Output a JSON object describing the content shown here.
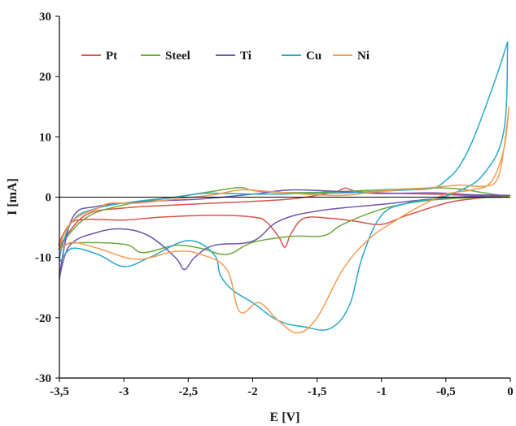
{
  "chart_data": {
    "type": "line",
    "xlabel": "E [V]",
    "ylabel": "I [mA]",
    "xlim": [
      -3.5,
      0
    ],
    "ylim": [
      -30,
      30
    ],
    "x_ticks": [
      -3.5,
      -3,
      -2.5,
      -2,
      -1.5,
      -1,
      -0.5,
      0
    ],
    "x_tick_labels": [
      "-3,5",
      "-3",
      "-2,5",
      "-2",
      "-1,5",
      "-1",
      "-0,5",
      "0"
    ],
    "y_ticks": [
      -30,
      -20,
      -10,
      0,
      10,
      20,
      30
    ],
    "y_tick_labels": [
      "-30",
      "-20",
      "-10",
      "0",
      "10",
      "20",
      "30"
    ],
    "grid": false,
    "legend_position": "top-left",
    "series": [
      {
        "name": "Pt",
        "color": "#d9534a",
        "points": [
          [
            0,
            0.3
          ],
          [
            -0.3,
            0.3
          ],
          [
            -0.6,
            0.5
          ],
          [
            -1.0,
            0.7
          ],
          [
            -1.2,
            1.0
          ],
          [
            -1.28,
            1.5
          ],
          [
            -1.35,
            0.9
          ],
          [
            -1.5,
            0.3
          ],
          [
            -1.7,
            -0.3
          ],
          [
            -2.0,
            -0.7
          ],
          [
            -2.3,
            -1.0
          ],
          [
            -2.6,
            -1.3
          ],
          [
            -3.0,
            -1.8
          ],
          [
            -3.3,
            -3.0
          ],
          [
            -3.5,
            -8.0
          ],
          [
            -3.42,
            -4.5
          ],
          [
            -3.3,
            -3.7
          ],
          [
            -3.0,
            -3.8
          ],
          [
            -2.7,
            -3.3
          ],
          [
            -2.3,
            -3.0
          ],
          [
            -2.0,
            -3.3
          ],
          [
            -1.9,
            -4.0
          ],
          [
            -1.8,
            -6.5
          ],
          [
            -1.75,
            -8.3
          ],
          [
            -1.7,
            -6.0
          ],
          [
            -1.6,
            -3.5
          ],
          [
            -1.4,
            -3.5
          ],
          [
            -1.2,
            -4.0
          ],
          [
            -1.0,
            -4.5
          ],
          [
            -0.8,
            -3.0
          ],
          [
            -0.5,
            -1.0
          ],
          [
            -0.3,
            -0.3
          ],
          [
            0,
            0.3
          ]
        ]
      },
      {
        "name": "Steel",
        "color": "#6aaa3c",
        "points": [
          [
            0,
            0
          ],
          [
            -0.2,
            0.7
          ],
          [
            -0.5,
            1.5
          ],
          [
            -1.0,
            1.2
          ],
          [
            -1.5,
            0.8
          ],
          [
            -1.8,
            0.8
          ],
          [
            -2.0,
            1.1
          ],
          [
            -2.1,
            1.6
          ],
          [
            -2.3,
            1.0
          ],
          [
            -2.6,
            0.0
          ],
          [
            -3.0,
            -1.3
          ],
          [
            -3.3,
            -3.5
          ],
          [
            -3.5,
            -8.5
          ],
          [
            -3.4,
            -7.6
          ],
          [
            -3.0,
            -7.8
          ],
          [
            -2.85,
            -9.2
          ],
          [
            -2.6,
            -8.0
          ],
          [
            -2.4,
            -8.5
          ],
          [
            -2.2,
            -9.5
          ],
          [
            -2.0,
            -7.5
          ],
          [
            -1.7,
            -6.5
          ],
          [
            -1.45,
            -6.4
          ],
          [
            -1.3,
            -4.5
          ],
          [
            -1.0,
            -2.0
          ],
          [
            -0.7,
            -0.7
          ],
          [
            -0.4,
            -0.2
          ],
          [
            0,
            0
          ]
        ]
      },
      {
        "name": "Ti",
        "color": "#7055b0",
        "points": [
          [
            0,
            0.3
          ],
          [
            -0.3,
            0.4
          ],
          [
            -0.6,
            0.7
          ],
          [
            -1.0,
            0.6
          ],
          [
            -1.3,
            0.9
          ],
          [
            -1.7,
            1.2
          ],
          [
            -2.0,
            0.5
          ],
          [
            -2.4,
            -0.3
          ],
          [
            -2.8,
            -0.7
          ],
          [
            -3.2,
            -1.5
          ],
          [
            -3.4,
            -3.5
          ],
          [
            -3.5,
            -13.5
          ],
          [
            -3.42,
            -8.0
          ],
          [
            -3.2,
            -5.8
          ],
          [
            -3.0,
            -5.3
          ],
          [
            -2.8,
            -6.5
          ],
          [
            -2.6,
            -10.0
          ],
          [
            -2.53,
            -12.0
          ],
          [
            -2.45,
            -10.0
          ],
          [
            -2.3,
            -8.0
          ],
          [
            -2.0,
            -7.3
          ],
          [
            -1.8,
            -4.0
          ],
          [
            -1.5,
            -2.3
          ],
          [
            -1.0,
            -1.2
          ],
          [
            -0.5,
            -0.1
          ],
          [
            0,
            0.3
          ]
        ]
      },
      {
        "name": "Cu",
        "color": "#2aa8c8",
        "points": [
          [
            -0.02,
            25.8
          ],
          [
            -0.1,
            20.5
          ],
          [
            -0.2,
            14.5
          ],
          [
            -0.3,
            9.0
          ],
          [
            -0.4,
            5.0
          ],
          [
            -0.5,
            2.8
          ],
          [
            -0.6,
            1.5
          ],
          [
            -0.8,
            1.2
          ],
          [
            -1.0,
            1.0
          ],
          [
            -1.3,
            0.7
          ],
          [
            -1.6,
            0.6
          ],
          [
            -1.9,
            0.5
          ],
          [
            -2.2,
            0.6
          ],
          [
            -2.4,
            0.6
          ],
          [
            -2.6,
            0.0
          ],
          [
            -2.9,
            -0.7
          ],
          [
            -3.2,
            -1.8
          ],
          [
            -3.4,
            -4.0
          ],
          [
            -3.5,
            -10.5
          ],
          [
            -3.4,
            -8.5
          ],
          [
            -3.2,
            -9.5
          ],
          [
            -3.0,
            -11.5
          ],
          [
            -2.8,
            -10.0
          ],
          [
            -2.5,
            -7.2
          ],
          [
            -2.3,
            -9.5
          ],
          [
            -2.25,
            -13.0
          ],
          [
            -2.15,
            -15.5
          ],
          [
            -2.0,
            -17.5
          ],
          [
            -1.8,
            -20.5
          ],
          [
            -1.6,
            -21.5
          ],
          [
            -1.4,
            -21.8
          ],
          [
            -1.25,
            -18.0
          ],
          [
            -1.15,
            -10.0
          ],
          [
            -1.0,
            -3.0
          ],
          [
            -0.8,
            -1.0
          ],
          [
            -0.6,
            -0.3
          ],
          [
            -0.4,
            1.0
          ],
          [
            -0.2,
            4.0
          ],
          [
            -0.05,
            11.0
          ],
          [
            -0.02,
            25.8
          ]
        ]
      },
      {
        "name": "Ni",
        "color": "#f59b52",
        "points": [
          [
            -0.01,
            15.0
          ],
          [
            -0.05,
            8.0
          ],
          [
            -0.1,
            3.0
          ],
          [
            -0.2,
            1.8
          ],
          [
            -0.4,
            2.0
          ],
          [
            -0.6,
            1.6
          ],
          [
            -1.0,
            1.0
          ],
          [
            -1.3,
            0.3
          ],
          [
            -1.6,
            0.5
          ],
          [
            -1.9,
            1.0
          ],
          [
            -2.1,
            1.2
          ],
          [
            -2.3,
            0.4
          ],
          [
            -2.6,
            -0.3
          ],
          [
            -2.9,
            -1.0
          ],
          [
            -3.1,
            -1.0
          ],
          [
            -3.2,
            -1.8
          ],
          [
            -3.4,
            -4.0
          ],
          [
            -3.5,
            -8.5
          ],
          [
            -3.4,
            -7.5
          ],
          [
            -3.2,
            -8.5
          ],
          [
            -2.9,
            -10.3
          ],
          [
            -2.6,
            -9.0
          ],
          [
            -2.4,
            -9.5
          ],
          [
            -2.2,
            -12.0
          ],
          [
            -2.1,
            -19.0
          ],
          [
            -1.95,
            -17.5
          ],
          [
            -1.8,
            -20.5
          ],
          [
            -1.65,
            -22.5
          ],
          [
            -1.5,
            -20.0
          ],
          [
            -1.3,
            -12.0
          ],
          [
            -1.1,
            -7.0
          ],
          [
            -0.9,
            -4.0
          ],
          [
            -0.7,
            -1.5
          ],
          [
            -0.5,
            0.5
          ],
          [
            -0.3,
            1.2
          ],
          [
            -0.15,
            2.5
          ],
          [
            -0.05,
            8.0
          ],
          [
            -0.01,
            15.0
          ]
        ]
      }
    ]
  }
}
